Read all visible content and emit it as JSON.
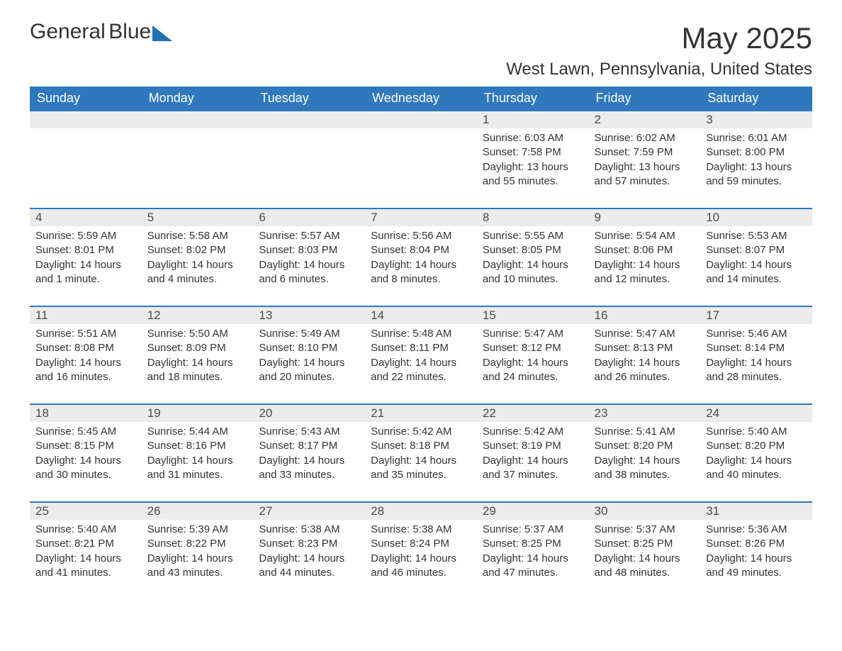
{
  "brand": {
    "word1": "General",
    "word2": "Blue"
  },
  "title": "May 2025",
  "subtitle": "West Lawn, Pennsylvania, United States",
  "colors": {
    "header_bg": "#2f78bd",
    "header_text": "#ffffff",
    "daynum_bg": "#ececec",
    "rule": "#2f78bd",
    "body_text": "#333333",
    "logo_blue": "#1f6fb2",
    "page_bg": "#ffffff"
  },
  "typography": {
    "title_pt": 42,
    "subtitle_pt": 24,
    "dayheader_pt": 18,
    "daynum_pt": 17,
    "body_pt": 15,
    "font_family": "Arial"
  },
  "layout": {
    "type": "calendar-table",
    "columns": 7,
    "rows": 5
  },
  "weekdays": [
    "Sunday",
    "Monday",
    "Tuesday",
    "Wednesday",
    "Thursday",
    "Friday",
    "Saturday"
  ],
  "leading_blanks": 4,
  "days": [
    {
      "n": "1",
      "sunrise": "Sunrise: 6:03 AM",
      "sunset": "Sunset: 7:58 PM",
      "daylight": "Daylight: 13 hours and 55 minutes."
    },
    {
      "n": "2",
      "sunrise": "Sunrise: 6:02 AM",
      "sunset": "Sunset: 7:59 PM",
      "daylight": "Daylight: 13 hours and 57 minutes."
    },
    {
      "n": "3",
      "sunrise": "Sunrise: 6:01 AM",
      "sunset": "Sunset: 8:00 PM",
      "daylight": "Daylight: 13 hours and 59 minutes."
    },
    {
      "n": "4",
      "sunrise": "Sunrise: 5:59 AM",
      "sunset": "Sunset: 8:01 PM",
      "daylight": "Daylight: 14 hours and 1 minute."
    },
    {
      "n": "5",
      "sunrise": "Sunrise: 5:58 AM",
      "sunset": "Sunset: 8:02 PM",
      "daylight": "Daylight: 14 hours and 4 minutes."
    },
    {
      "n": "6",
      "sunrise": "Sunrise: 5:57 AM",
      "sunset": "Sunset: 8:03 PM",
      "daylight": "Daylight: 14 hours and 6 minutes."
    },
    {
      "n": "7",
      "sunrise": "Sunrise: 5:56 AM",
      "sunset": "Sunset: 8:04 PM",
      "daylight": "Daylight: 14 hours and 8 minutes."
    },
    {
      "n": "8",
      "sunrise": "Sunrise: 5:55 AM",
      "sunset": "Sunset: 8:05 PM",
      "daylight": "Daylight: 14 hours and 10 minutes."
    },
    {
      "n": "9",
      "sunrise": "Sunrise: 5:54 AM",
      "sunset": "Sunset: 8:06 PM",
      "daylight": "Daylight: 14 hours and 12 minutes."
    },
    {
      "n": "10",
      "sunrise": "Sunrise: 5:53 AM",
      "sunset": "Sunset: 8:07 PM",
      "daylight": "Daylight: 14 hours and 14 minutes."
    },
    {
      "n": "11",
      "sunrise": "Sunrise: 5:51 AM",
      "sunset": "Sunset: 8:08 PM",
      "daylight": "Daylight: 14 hours and 16 minutes."
    },
    {
      "n": "12",
      "sunrise": "Sunrise: 5:50 AM",
      "sunset": "Sunset: 8:09 PM",
      "daylight": "Daylight: 14 hours and 18 minutes."
    },
    {
      "n": "13",
      "sunrise": "Sunrise: 5:49 AM",
      "sunset": "Sunset: 8:10 PM",
      "daylight": "Daylight: 14 hours and 20 minutes."
    },
    {
      "n": "14",
      "sunrise": "Sunrise: 5:48 AM",
      "sunset": "Sunset: 8:11 PM",
      "daylight": "Daylight: 14 hours and 22 minutes."
    },
    {
      "n": "15",
      "sunrise": "Sunrise: 5:47 AM",
      "sunset": "Sunset: 8:12 PM",
      "daylight": "Daylight: 14 hours and 24 minutes."
    },
    {
      "n": "16",
      "sunrise": "Sunrise: 5:47 AM",
      "sunset": "Sunset: 8:13 PM",
      "daylight": "Daylight: 14 hours and 26 minutes."
    },
    {
      "n": "17",
      "sunrise": "Sunrise: 5:46 AM",
      "sunset": "Sunset: 8:14 PM",
      "daylight": "Daylight: 14 hours and 28 minutes."
    },
    {
      "n": "18",
      "sunrise": "Sunrise: 5:45 AM",
      "sunset": "Sunset: 8:15 PM",
      "daylight": "Daylight: 14 hours and 30 minutes."
    },
    {
      "n": "19",
      "sunrise": "Sunrise: 5:44 AM",
      "sunset": "Sunset: 8:16 PM",
      "daylight": "Daylight: 14 hours and 31 minutes."
    },
    {
      "n": "20",
      "sunrise": "Sunrise: 5:43 AM",
      "sunset": "Sunset: 8:17 PM",
      "daylight": "Daylight: 14 hours and 33 minutes."
    },
    {
      "n": "21",
      "sunrise": "Sunrise: 5:42 AM",
      "sunset": "Sunset: 8:18 PM",
      "daylight": "Daylight: 14 hours and 35 minutes."
    },
    {
      "n": "22",
      "sunrise": "Sunrise: 5:42 AM",
      "sunset": "Sunset: 8:19 PM",
      "daylight": "Daylight: 14 hours and 37 minutes."
    },
    {
      "n": "23",
      "sunrise": "Sunrise: 5:41 AM",
      "sunset": "Sunset: 8:20 PM",
      "daylight": "Daylight: 14 hours and 38 minutes."
    },
    {
      "n": "24",
      "sunrise": "Sunrise: 5:40 AM",
      "sunset": "Sunset: 8:20 PM",
      "daylight": "Daylight: 14 hours and 40 minutes."
    },
    {
      "n": "25",
      "sunrise": "Sunrise: 5:40 AM",
      "sunset": "Sunset: 8:21 PM",
      "daylight": "Daylight: 14 hours and 41 minutes."
    },
    {
      "n": "26",
      "sunrise": "Sunrise: 5:39 AM",
      "sunset": "Sunset: 8:22 PM",
      "daylight": "Daylight: 14 hours and 43 minutes."
    },
    {
      "n": "27",
      "sunrise": "Sunrise: 5:38 AM",
      "sunset": "Sunset: 8:23 PM",
      "daylight": "Daylight: 14 hours and 44 minutes."
    },
    {
      "n": "28",
      "sunrise": "Sunrise: 5:38 AM",
      "sunset": "Sunset: 8:24 PM",
      "daylight": "Daylight: 14 hours and 46 minutes."
    },
    {
      "n": "29",
      "sunrise": "Sunrise: 5:37 AM",
      "sunset": "Sunset: 8:25 PM",
      "daylight": "Daylight: 14 hours and 47 minutes."
    },
    {
      "n": "30",
      "sunrise": "Sunrise: 5:37 AM",
      "sunset": "Sunset: 8:25 PM",
      "daylight": "Daylight: 14 hours and 48 minutes."
    },
    {
      "n": "31",
      "sunrise": "Sunrise: 5:36 AM",
      "sunset": "Sunset: 8:26 PM",
      "daylight": "Daylight: 14 hours and 49 minutes."
    }
  ]
}
